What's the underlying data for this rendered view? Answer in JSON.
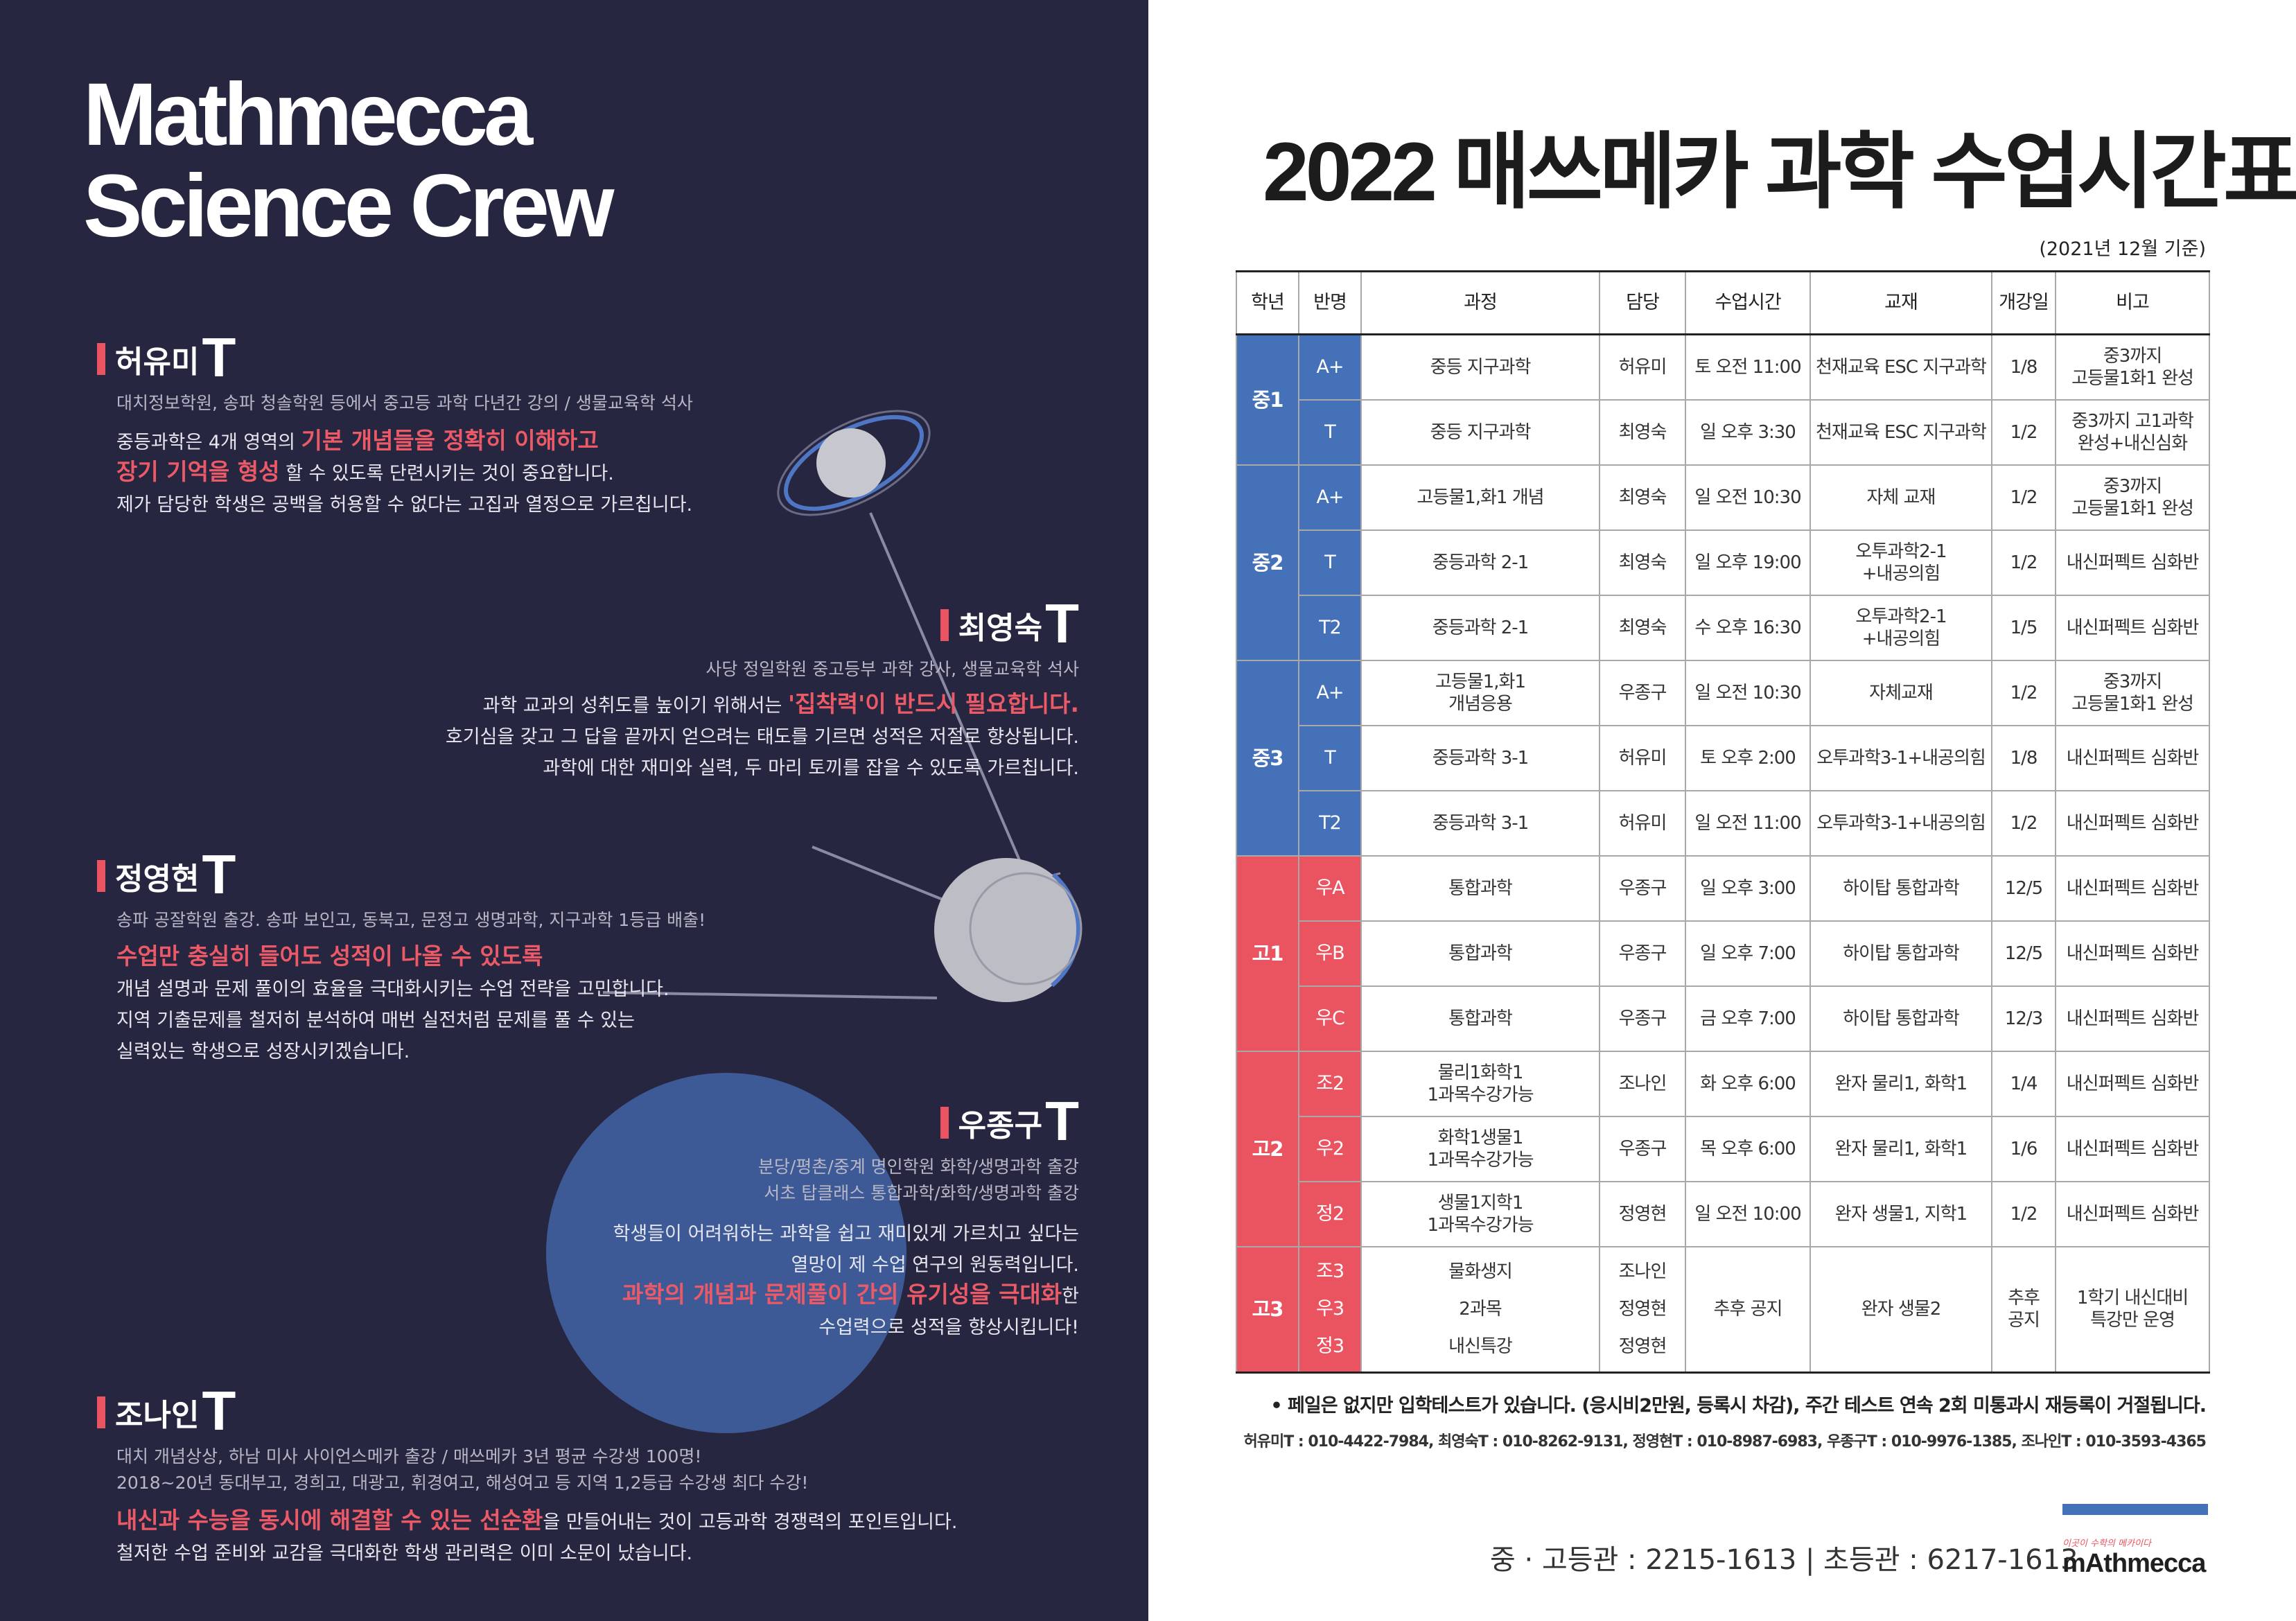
{
  "left": {
    "brand": [
      "Mathmecca",
      "Science Crew"
    ],
    "teachers": [
      {
        "name": "허유미",
        "suffix": "T",
        "credentials": [
          "대치정보학원, 송파 청솔학원 등에서 중고등 과학 다년간 강의 / 생물교육학 석사"
        ],
        "lines": [
          {
            "pre": "중등과학은 4개 영역의 ",
            "hl": "기본 개념들을 정확히 이해하고",
            "post": ""
          },
          {
            "pre": "",
            "hl": "장기 기억을 형성",
            "post": " 할 수 있도록 단련시키는 것이 중요합니다."
          },
          {
            "pre": "제가 담당한 학생은 공백을 허용할 수 없다는 고집과 열정으로 가르칩니다.",
            "hl": "",
            "post": ""
          }
        ]
      },
      {
        "name": "최영숙",
        "suffix": "T",
        "credentials": [
          "사당 정일학원 중고등부 과학 강사, 생물교육학 석사"
        ],
        "lines": [
          {
            "pre": "과학 교과의 성취도를 높이기 위해서는 ",
            "hl": "'집착력'이 반드시 필요합니다.",
            "post": ""
          },
          {
            "pre": "호기심을 갖고 그 답을 끝까지 얻으려는 태도를 기르면 성적은 저절로 향상됩니다.",
            "hl": "",
            "post": ""
          },
          {
            "pre": "과학에 대한 재미와 실력, 두 마리 토끼를 잡을 수 있도록 가르칩니다.",
            "hl": "",
            "post": ""
          }
        ]
      },
      {
        "name": "정영현",
        "suffix": "T",
        "credentials": [
          "송파 공잘학원 출강. 송파 보인고, 동북고, 문정고 생명과학, 지구과학 1등급 배출!"
        ],
        "lines": [
          {
            "pre": "",
            "hl": "수업만 충실히 들어도 성적이 나올 수 있도록",
            "post": ""
          },
          {
            "pre": "개념 설명과 문제 풀이의 효율을 극대화시키는 수업 전략을 고민합니다.",
            "hl": "",
            "post": ""
          },
          {
            "pre": "지역 기출문제를 철저히 분석하여 매번 실전처럼 문제를 풀 수 있는",
            "hl": "",
            "post": ""
          },
          {
            "pre": "실력있는 학생으로 성장시키겠습니다.",
            "hl": "",
            "post": ""
          }
        ]
      },
      {
        "name": "우종구",
        "suffix": "T",
        "credentials": [
          "분당/평촌/중계 명인학원 화학/생명과학 출강",
          "서초 탑클래스 통합과학/화학/생명과학 출강"
        ],
        "lines": [
          {
            "pre": "학생들이 어려워하는 과학을 쉽고 재미있게 가르치고 싶다는",
            "hl": "",
            "post": ""
          },
          {
            "pre": "열망이 제 수업 연구의 원동력입니다.",
            "hl": "",
            "post": ""
          },
          {
            "pre": "",
            "hl": "과학의 개념과 문제풀이 간의 유기성을 극대화",
            "post": "한"
          },
          {
            "pre": "수업력으로 성적을 향상시킵니다!",
            "hl": "",
            "post": ""
          }
        ]
      },
      {
        "name": "조나인",
        "suffix": "T",
        "credentials": [
          "대치 개념상상, 하남 미사 사이언스메카 출강 / 매쓰메카 3년 평균 수강생 100명!",
          "2018~20년 동대부고, 경희고, 대광고, 휘경여고, 해성여고 등 지역 1,2등급 수강생 최다 수강!"
        ],
        "lines": [
          {
            "pre": "",
            "hl": "내신과 수능을 동시에 해결할 수 있는 선순환",
            "post": "을 만들어내는 것이 고등과학 경쟁력의 포인트입니다."
          },
          {
            "pre": "철저한 수업 준비와 교감을 극대화한 학생 관리력은 이미 소문이 났습니다.",
            "hl": "",
            "post": ""
          }
        ]
      }
    ]
  },
  "right": {
    "title": "2022 매쓰메카 과학 수업시간표",
    "as_of": "(2021년 12월 기준)",
    "headers": [
      "학년",
      "반명",
      "과정",
      "담당",
      "수업시간",
      "교재",
      "개강일",
      "비고"
    ],
    "groups": [
      {
        "grade": "중1",
        "color": "blue",
        "rows": [
          {
            "class": "A+",
            "course": "중등 지구과학",
            "teacher": "허유미",
            "time": "토 오전 11:00",
            "book": "천재교육 ESC 지구과학",
            "start": "1/8",
            "note": "중3까지\n고등물1화1 완성"
          },
          {
            "class": "T",
            "course": "중등 지구과학",
            "teacher": "최영숙",
            "time": "일 오후 3:30",
            "book": "천재교육 ESC 지구과학",
            "start": "1/2",
            "note": "중3까지 고1과학\n완성+내신심화"
          }
        ]
      },
      {
        "grade": "중2",
        "color": "blue",
        "rows": [
          {
            "class": "A+",
            "course": "고등물1,화1 개념",
            "teacher": "최영숙",
            "time": "일 오전 10:30",
            "book": "자체 교재",
            "start": "1/2",
            "note": "중3까지\n고등물1화1 완성"
          },
          {
            "class": "T",
            "course": "중등과학 2-1",
            "teacher": "최영숙",
            "time": "일 오후 19:00",
            "book": "오투과학2-1\n+내공의힘",
            "start": "1/2",
            "note": "내신퍼펙트 심화반"
          },
          {
            "class": "T2",
            "course": "중등과학 2-1",
            "teacher": "최영숙",
            "time": "수 오후 16:30",
            "book": "오투과학2-1\n+내공의힘",
            "start": "1/5",
            "note": "내신퍼펙트 심화반"
          }
        ]
      },
      {
        "grade": "중3",
        "color": "blue",
        "rows": [
          {
            "class": "A+",
            "course": "고등물1,화1\n개념응용",
            "teacher": "우종구",
            "time": "일 오전 10:30",
            "book": "자체교재",
            "start": "1/2",
            "note": "중3까지\n고등물1화1 완성"
          },
          {
            "class": "T",
            "course": "중등과학 3-1",
            "teacher": "허유미",
            "time": "토 오후 2:00",
            "book": "오투과학3-1+내공의힘",
            "start": "1/8",
            "note": "내신퍼펙트 심화반"
          },
          {
            "class": "T2",
            "course": "중등과학 3-1",
            "teacher": "허유미",
            "time": "일 오전 11:00",
            "book": "오투과학3-1+내공의힘",
            "start": "1/2",
            "note": "내신퍼펙트 심화반"
          }
        ]
      },
      {
        "grade": "고1",
        "color": "red",
        "rows": [
          {
            "class": "우A",
            "course": "통합과학",
            "teacher": "우종구",
            "time": "일 오후 3:00",
            "book": "하이탑 통합과학",
            "start": "12/5",
            "note": "내신퍼펙트 심화반"
          },
          {
            "class": "우B",
            "course": "통합과학",
            "teacher": "우종구",
            "time": "일 오후 7:00",
            "book": "하이탑 통합과학",
            "start": "12/5",
            "note": "내신퍼펙트 심화반"
          },
          {
            "class": "우C",
            "course": "통합과학",
            "teacher": "우종구",
            "time": "금 오후 7:00",
            "book": "하이탑 통합과학",
            "start": "12/3",
            "note": "내신퍼펙트 심화반"
          }
        ]
      },
      {
        "grade": "고2",
        "color": "red",
        "rows": [
          {
            "class": "조2",
            "course": "물리1화학1\n1과목수강가능",
            "teacher": "조나인",
            "time": "화 오후 6:00",
            "book": "완자 물리1, 화학1",
            "start": "1/4",
            "note": "내신퍼펙트 심화반"
          },
          {
            "class": "우2",
            "course": "화학1생물1\n1과목수강가능",
            "teacher": "우종구",
            "time": "목 오후 6:00",
            "book": "완자 물리1, 화학1",
            "start": "1/6",
            "note": "내신퍼펙트 심화반"
          },
          {
            "class": "정2",
            "course": "생물1지학1\n1과목수강가능",
            "teacher": "정영현",
            "time": "일 오전 10:00",
            "book": "완자 생물1, 지학1",
            "start": "1/2",
            "note": "내신퍼펙트 심화반"
          }
        ]
      }
    ],
    "g3": {
      "grade": "고3",
      "classes": [
        "조3",
        "우3",
        "정3"
      ],
      "courses": [
        "물화생지",
        "2과목",
        "내신특강"
      ],
      "teachers": [
        "조나인",
        "정영현",
        "정영현"
      ],
      "time": "추후 공지",
      "book": "완자 생물2",
      "start": "추후\n공지",
      "note": "1학기 내신대비\n특강만 운영"
    },
    "note": "• 페일은 없지만 입학테스트가 있습니다. (응시비2만원, 등록시 차감), 주간 테스트 연속 2회 미통과시 재등록이 거절됩니다.",
    "contacts": "허유미T : 010-4422-7984, 최영숙T : 010-8262-9131, 정영현T : 010-8987-6983, 우종구T : 010-9976-1385, 조나인T : 010-3593-4365",
    "phones": "중 · 고등관 : 2215-1613  |  초등관 : 6217-1613",
    "logo_tagline": "이곳이 수학의 메카이다",
    "logo": "mAthmecca"
  },
  "colors": {
    "navy": "#262640",
    "accent": "#ea5460",
    "blue": "#4571b9"
  }
}
